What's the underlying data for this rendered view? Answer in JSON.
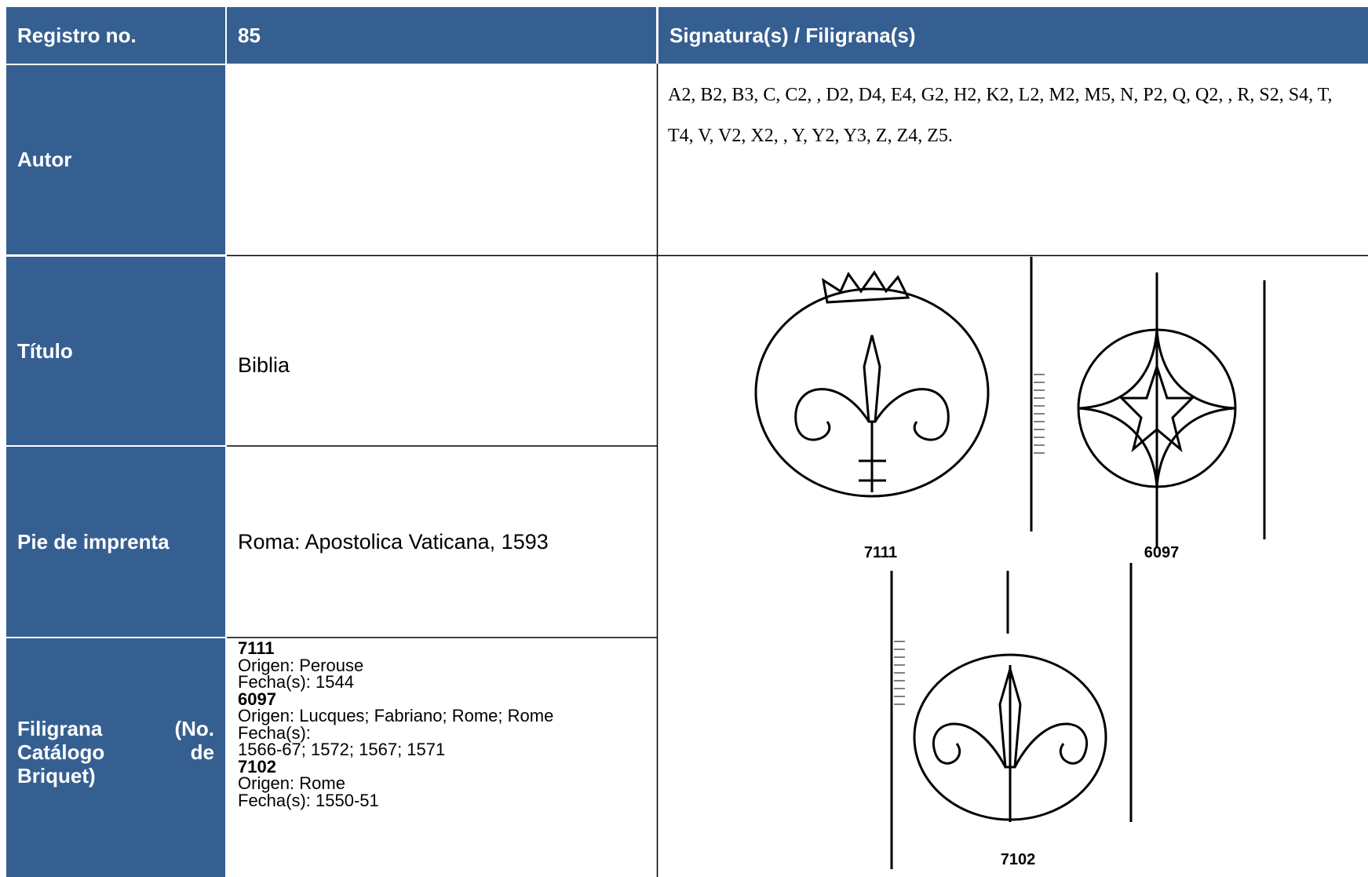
{
  "header": {
    "label": "Registro no.",
    "number": "85",
    "right": "Signatura(s) / Filigrana(s)"
  },
  "rows": {
    "autor": {
      "label": "Autor"
    },
    "titulo": {
      "label": "Título",
      "value": "Biblia"
    },
    "pie": {
      "label": "Pie de imprenta",
      "value": "Roma: Apostolica Vaticana, 1593"
    },
    "filigrana": {
      "label": "Filigrana (No. Catálogo de Briquet)"
    }
  },
  "signatures": "A2, B2, B3, C, C2, , D2, D4, E4, G2, H2, K2, L2, M2, M5, N, P2, Q, Q2, , R, S2, S4, T, T4, V, V2, X2, , Y, Y2, Y3, Z, Z4, Z5.",
  "filigrana_details": [
    {
      "number": "7111",
      "lines": [
        "Origen: Perouse",
        "Fecha(s): 1544"
      ]
    },
    {
      "number": "6097",
      "lines": [
        "Origen: Lucques; Fabriano; Rome; Rome",
        "Fecha(s):",
        "1566-67; 1572; 1567; 1571"
      ]
    },
    {
      "number": "7102",
      "lines": [
        "Origen: Rome",
        "Fecha(s): 1550-51"
      ]
    }
  ],
  "watermark_labels": [
    "7111",
    "6097",
    "7102"
  ]
}
